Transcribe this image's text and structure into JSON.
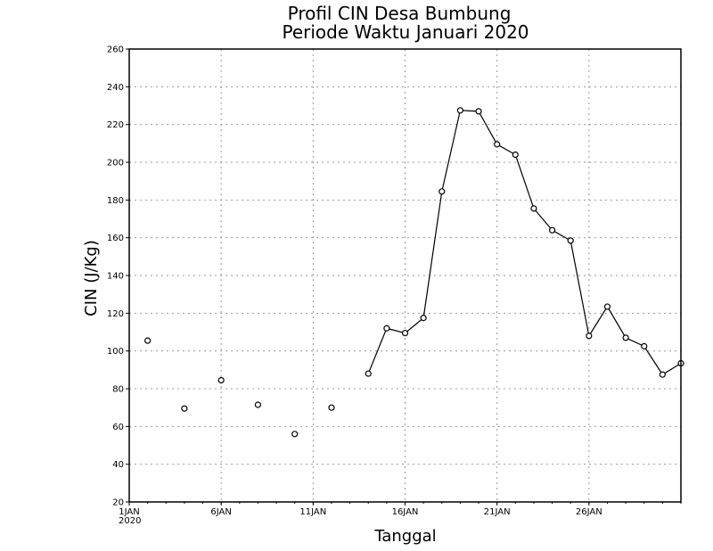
{
  "chart_data": {
    "type": "line",
    "title": [
      "Profil CIN Desa Bumbung",
      "Periode Waktu Januari 2020"
    ],
    "xlabel": "Tanggal",
    "ylabel": "CIN (J/Kg)",
    "xlim": [
      1,
      31
    ],
    "ylim": [
      20,
      260
    ],
    "yticks": [
      20,
      40,
      60,
      80,
      100,
      120,
      140,
      160,
      180,
      200,
      220,
      240,
      260
    ],
    "xticks": [
      {
        "x": 1,
        "label": "1JAN",
        "sublabel": "2020"
      },
      {
        "x": 6,
        "label": "6JAN"
      },
      {
        "x": 11,
        "label": "11JAN"
      },
      {
        "x": 16,
        "label": "16JAN"
      },
      {
        "x": 21,
        "label": "21JAN"
      },
      {
        "x": 26,
        "label": "26JAN"
      }
    ],
    "grid": true,
    "series": [
      {
        "x": [
          2,
          3,
          4,
          5,
          6,
          7,
          8,
          9,
          10,
          11,
          12,
          13,
          14,
          15,
          16,
          17,
          18,
          19,
          20,
          21,
          22,
          23,
          24,
          25,
          26,
          27,
          28,
          29,
          30,
          31
        ],
        "values": [
          105.5,
          null,
          69.5,
          null,
          84.5,
          null,
          71.5,
          null,
          56,
          null,
          70,
          null,
          88,
          112,
          109.5,
          117.5,
          184.5,
          227.5,
          227,
          209.5,
          204,
          175.5,
          164,
          158.5,
          108,
          123.5,
          107,
          102.5,
          87.5,
          93.5
        ]
      }
    ]
  }
}
